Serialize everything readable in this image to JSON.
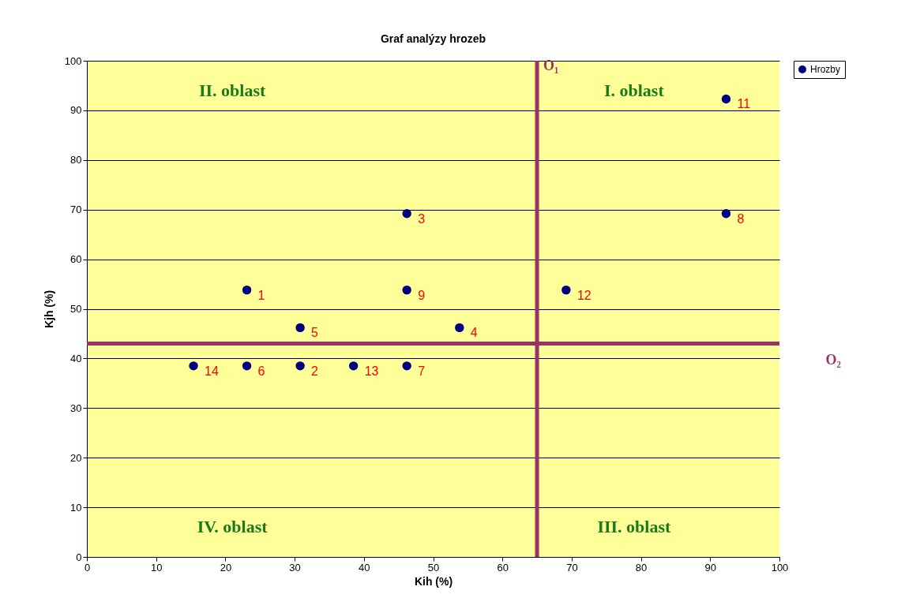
{
  "chart_data": {
    "type": "scatter",
    "title": "Graf analýzy hrozeb",
    "xlabel": "Kih (%)",
    "ylabel": "Kjh (%)",
    "x": [
      23.1,
      30.8,
      46.2,
      53.8,
      30.8,
      23.1,
      46.2,
      92.3,
      46.2,
      92.3,
      69.2,
      38.5,
      15.4
    ],
    "series": [
      {
        "name": "Hrozby",
        "color": "#000080",
        "values": [
          53.8,
          38.5,
          69.2,
          46.2,
          46.2,
          38.5,
          38.5,
          69.2,
          53.8,
          92.3,
          53.8,
          38.5,
          38.5
        ]
      }
    ],
    "xlim": [
      0,
      100
    ],
    "xticks": [
      0,
      10,
      20,
      30,
      40,
      50,
      60,
      70,
      80,
      90,
      100
    ],
    "ylim": [
      0,
      100
    ],
    "yticks": [
      0,
      10,
      20,
      30,
      40,
      50,
      60,
      70,
      80,
      90,
      100
    ],
    "grid": "y",
    "legend": "right",
    "marker": "circle",
    "ref_lines": [
      {
        "axis": "x",
        "value": 65,
        "label": "O₁",
        "color": "#993366"
      },
      {
        "axis": "y",
        "value": 43,
        "label": "O₂",
        "color": "#993366"
      }
    ],
    "annotations": [
      "II. oblast",
      "I. oblast",
      "IV. oblast",
      "III. oblast",
      {
        "text": "1",
        "x": 23.1,
        "y": 53.8
      },
      {
        "text": "2",
        "x": 30.8,
        "y": 38.5
      },
      {
        "text": "3",
        "x": 46.2,
        "y": 69.2
      },
      {
        "text": "4",
        "x": 53.8,
        "y": 46.2
      },
      {
        "text": "5",
        "x": 30.8,
        "y": 46.2
      },
      {
        "text": "6",
        "x": 23.1,
        "y": 38.5
      },
      {
        "text": "7",
        "x": 46.2,
        "y": 38.5
      },
      {
        "text": "8",
        "x": 92.3,
        "y": 69.2
      },
      {
        "text": "9",
        "x": 46.2,
        "y": 53.8
      },
      {
        "text": "11",
        "x": 92.3,
        "y": 92.3
      },
      {
        "text": "12",
        "x": 69.2,
        "y": 53.8
      },
      {
        "text": "13",
        "x": 38.5,
        "y": 38.5
      },
      {
        "text": "14",
        "x": 15.4,
        "y": 38.5
      }
    ]
  }
}
